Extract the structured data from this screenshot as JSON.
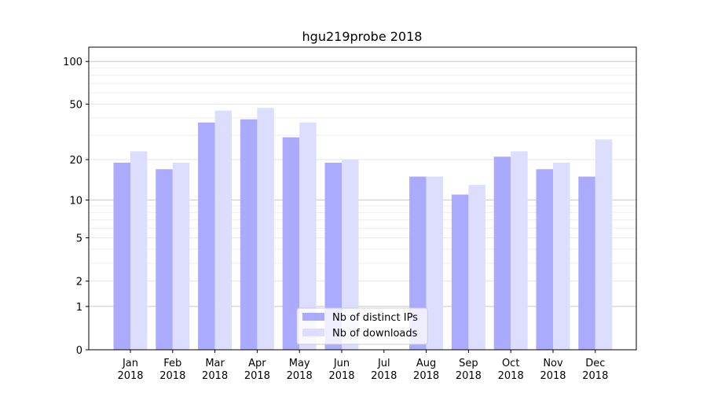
{
  "chart_data": {
    "type": "bar",
    "title": "hgu219probe 2018",
    "xlabel": "",
    "ylabel": "",
    "yscale": "symlog (log10(1+y))",
    "ylim": [
      0,
      120
    ],
    "yticks": [
      0,
      1,
      2,
      5,
      10,
      20,
      50,
      100
    ],
    "grid": true,
    "legend_position": "bottom-center",
    "categories": [
      "Jan\n2018",
      "Feb\n2018",
      "Mar\n2018",
      "Apr\n2018",
      "May\n2018",
      "Jun\n2018",
      "Jul\n2018",
      "Aug\n2018",
      "Sep\n2018",
      "Oct\n2018",
      "Nov\n2018",
      "Dec\n2018"
    ],
    "series": [
      {
        "name": "Nb of distinct IPs",
        "color": "#aaaaff",
        "values": [
          19,
          17,
          37,
          39,
          29,
          19,
          0,
          15,
          11,
          21,
          17,
          15
        ]
      },
      {
        "name": "Nb of downloads",
        "color": "#ddddff",
        "values": [
          23,
          19,
          45,
          47,
          37,
          20,
          0,
          15,
          13,
          23,
          19,
          28
        ]
      }
    ]
  }
}
